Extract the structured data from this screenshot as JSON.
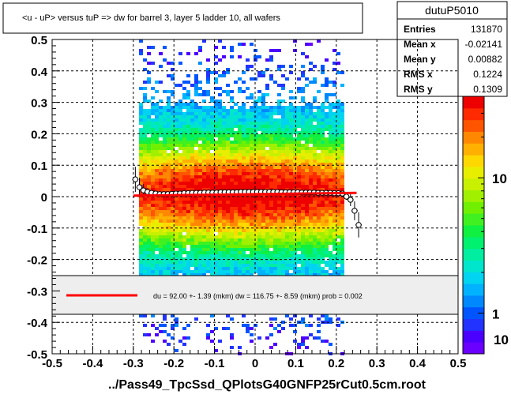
{
  "title": "<u - uP>       versus  tuP =>  dw for barrel 3, layer 5 ladder 10, all wafers",
  "xlabel": "../Pass49_TpcSsd_QPlotsG40GNFP25rCut0.5cm.root",
  "stats": {
    "name": "dutuP5010",
    "rows": [
      {
        "label": "Entries",
        "value": "131870"
      },
      {
        "label": "Mean x",
        "value": "-0.02141"
      },
      {
        "label": "Mean y",
        "value": "0.00882"
      },
      {
        "label": "RMS x",
        "value": "0.1224"
      },
      {
        "label": "RMS y",
        "value": "0.1309"
      }
    ]
  },
  "fit_text": "du =   92.00 +-  1.39 (mkm) dw =  116.75 +-  8.59 (mkm) prob = 0.002",
  "colors": {
    "fit_line": "#ff0000",
    "points": "#000000"
  },
  "chart_data": {
    "type": "heatmap",
    "x_range": [
      -0.5,
      0.5
    ],
    "y_range": [
      -0.5,
      0.5
    ],
    "x_ticks": [
      "-0.5",
      "-0.4",
      "-0.3",
      "-0.2",
      "-0.1",
      "0",
      "0.1",
      "0.2",
      "0.3",
      "0.4",
      "0.5"
    ],
    "y_ticks": [
      "-0.5",
      "-0.4",
      "-0.3",
      "-0.2",
      "-0.1",
      "0",
      "0.1",
      "0.2",
      "0.3",
      "0.4",
      "0.5"
    ],
    "z_scale": "log",
    "z_ticks": [
      "1",
      "10"
    ],
    "z_tick_values": [
      1,
      10
    ],
    "z_max": 40,
    "z_tick_10_partial": "10",
    "density": {
      "x_min": -0.29,
      "x_max": 0.22,
      "y_center": 0.01,
      "y_rms": 0.1309,
      "x_center": -0.02
    },
    "profile": {
      "x": [
        -0.295,
        -0.285,
        -0.275,
        -0.265,
        -0.255,
        -0.245,
        -0.235,
        -0.225,
        -0.215,
        -0.205,
        -0.195,
        -0.185,
        -0.175,
        -0.165,
        -0.155,
        -0.145,
        -0.135,
        -0.125,
        -0.115,
        -0.105,
        -0.095,
        -0.085,
        -0.075,
        -0.065,
        -0.055,
        -0.045,
        -0.035,
        -0.025,
        -0.015,
        -0.005,
        0.005,
        0.015,
        0.025,
        0.035,
        0.045,
        0.055,
        0.065,
        0.075,
        0.085,
        0.095,
        0.105,
        0.115,
        0.125,
        0.135,
        0.145,
        0.155,
        0.165,
        0.175,
        0.185,
        0.195,
        0.205,
        0.215,
        0.225,
        0.235,
        0.245,
        0.255
      ],
      "y": [
        0.055,
        0.03,
        0.02,
        0.015,
        0.012,
        0.01,
        0.008,
        0.008,
        0.008,
        0.009,
        0.01,
        0.01,
        0.011,
        0.011,
        0.012,
        0.012,
        0.012,
        0.013,
        0.013,
        0.013,
        0.013,
        0.014,
        0.014,
        0.014,
        0.014,
        0.014,
        0.015,
        0.015,
        0.015,
        0.015,
        0.015,
        0.015,
        0.015,
        0.015,
        0.015,
        0.015,
        0.014,
        0.014,
        0.014,
        0.014,
        0.014,
        0.013,
        0.013,
        0.013,
        0.013,
        0.012,
        0.012,
        0.012,
        0.012,
        0.011,
        0.011,
        0.01,
        0.0,
        -0.01,
        -0.045,
        -0.09
      ],
      "err": [
        0.04,
        0.03,
        0.02,
        0.012,
        0.008,
        0.006,
        0.005,
        0.004,
        0.004,
        0.003,
        0.003,
        0.003,
        0.003,
        0.003,
        0.003,
        0.003,
        0.003,
        0.003,
        0.003,
        0.003,
        0.003,
        0.003,
        0.003,
        0.003,
        0.003,
        0.003,
        0.003,
        0.003,
        0.003,
        0.003,
        0.003,
        0.003,
        0.003,
        0.003,
        0.003,
        0.003,
        0.003,
        0.003,
        0.003,
        0.003,
        0.003,
        0.003,
        0.003,
        0.003,
        0.003,
        0.003,
        0.003,
        0.003,
        0.003,
        0.004,
        0.004,
        0.006,
        0.01,
        0.02,
        0.03,
        0.04
      ]
    },
    "fit_line": {
      "x": [
        -0.3,
        0.25
      ],
      "y": [
        0.003,
        0.012
      ]
    }
  }
}
